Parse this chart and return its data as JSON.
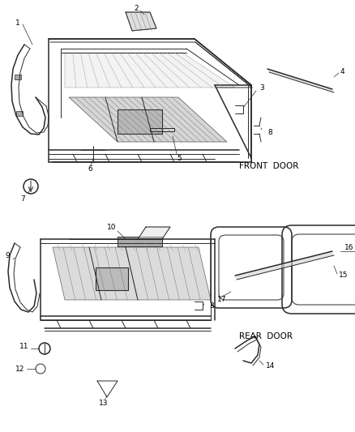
{
  "bg_color": "#ffffff",
  "line_color": "#2a2a2a",
  "label_color": "#000000",
  "font_size": 6.5,
  "front_door_label": "FRONT  DOOR",
  "rear_door_label": "REAR  DOOR",
  "fig_width": 4.39,
  "fig_height": 5.33,
  "dpi": 100
}
